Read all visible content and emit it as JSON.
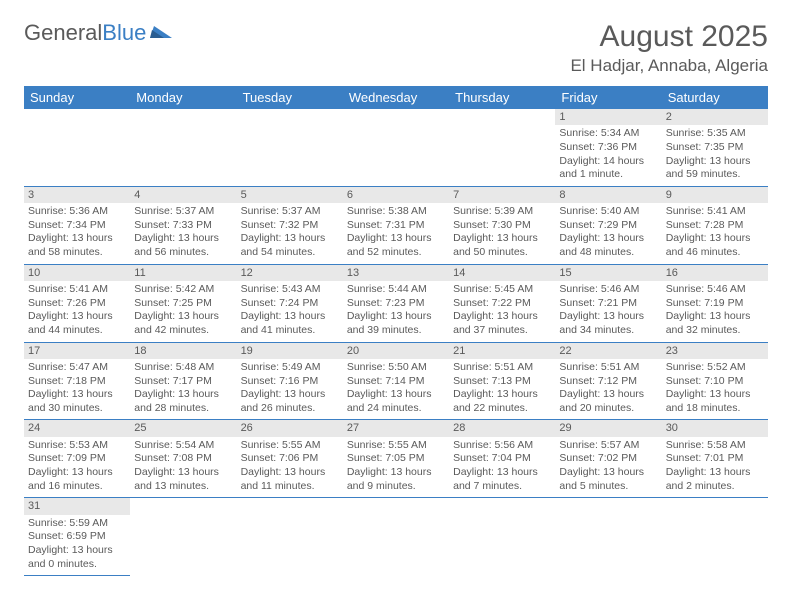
{
  "logo": {
    "text1": "General",
    "text2": "Blue"
  },
  "title": "August 2025",
  "location": "El Hadjar, Annaba, Algeria",
  "colors": {
    "header_bg": "#3b7fc4",
    "header_text": "#ffffff",
    "daynum_bg": "#e8e8e8",
    "border": "#3b7fc4",
    "text": "#5a5a5a"
  },
  "weekdays": [
    "Sunday",
    "Monday",
    "Tuesday",
    "Wednesday",
    "Thursday",
    "Friday",
    "Saturday"
  ],
  "weeks": [
    [
      null,
      null,
      null,
      null,
      null,
      {
        "n": "1",
        "sr": "5:34 AM",
        "ss": "7:36 PM",
        "dl": "14 hours and 1 minute."
      },
      {
        "n": "2",
        "sr": "5:35 AM",
        "ss": "7:35 PM",
        "dl": "13 hours and 59 minutes."
      }
    ],
    [
      {
        "n": "3",
        "sr": "5:36 AM",
        "ss": "7:34 PM",
        "dl": "13 hours and 58 minutes."
      },
      {
        "n": "4",
        "sr": "5:37 AM",
        "ss": "7:33 PM",
        "dl": "13 hours and 56 minutes."
      },
      {
        "n": "5",
        "sr": "5:37 AM",
        "ss": "7:32 PM",
        "dl": "13 hours and 54 minutes."
      },
      {
        "n": "6",
        "sr": "5:38 AM",
        "ss": "7:31 PM",
        "dl": "13 hours and 52 minutes."
      },
      {
        "n": "7",
        "sr": "5:39 AM",
        "ss": "7:30 PM",
        "dl": "13 hours and 50 minutes."
      },
      {
        "n": "8",
        "sr": "5:40 AM",
        "ss": "7:29 PM",
        "dl": "13 hours and 48 minutes."
      },
      {
        "n": "9",
        "sr": "5:41 AM",
        "ss": "7:28 PM",
        "dl": "13 hours and 46 minutes."
      }
    ],
    [
      {
        "n": "10",
        "sr": "5:41 AM",
        "ss": "7:26 PM",
        "dl": "13 hours and 44 minutes."
      },
      {
        "n": "11",
        "sr": "5:42 AM",
        "ss": "7:25 PM",
        "dl": "13 hours and 42 minutes."
      },
      {
        "n": "12",
        "sr": "5:43 AM",
        "ss": "7:24 PM",
        "dl": "13 hours and 41 minutes."
      },
      {
        "n": "13",
        "sr": "5:44 AM",
        "ss": "7:23 PM",
        "dl": "13 hours and 39 minutes."
      },
      {
        "n": "14",
        "sr": "5:45 AM",
        "ss": "7:22 PM",
        "dl": "13 hours and 37 minutes."
      },
      {
        "n": "15",
        "sr": "5:46 AM",
        "ss": "7:21 PM",
        "dl": "13 hours and 34 minutes."
      },
      {
        "n": "16",
        "sr": "5:46 AM",
        "ss": "7:19 PM",
        "dl": "13 hours and 32 minutes."
      }
    ],
    [
      {
        "n": "17",
        "sr": "5:47 AM",
        "ss": "7:18 PM",
        "dl": "13 hours and 30 minutes."
      },
      {
        "n": "18",
        "sr": "5:48 AM",
        "ss": "7:17 PM",
        "dl": "13 hours and 28 minutes."
      },
      {
        "n": "19",
        "sr": "5:49 AM",
        "ss": "7:16 PM",
        "dl": "13 hours and 26 minutes."
      },
      {
        "n": "20",
        "sr": "5:50 AM",
        "ss": "7:14 PM",
        "dl": "13 hours and 24 minutes."
      },
      {
        "n": "21",
        "sr": "5:51 AM",
        "ss": "7:13 PM",
        "dl": "13 hours and 22 minutes."
      },
      {
        "n": "22",
        "sr": "5:51 AM",
        "ss": "7:12 PM",
        "dl": "13 hours and 20 minutes."
      },
      {
        "n": "23",
        "sr": "5:52 AM",
        "ss": "7:10 PM",
        "dl": "13 hours and 18 minutes."
      }
    ],
    [
      {
        "n": "24",
        "sr": "5:53 AM",
        "ss": "7:09 PM",
        "dl": "13 hours and 16 minutes."
      },
      {
        "n": "25",
        "sr": "5:54 AM",
        "ss": "7:08 PM",
        "dl": "13 hours and 13 minutes."
      },
      {
        "n": "26",
        "sr": "5:55 AM",
        "ss": "7:06 PM",
        "dl": "13 hours and 11 minutes."
      },
      {
        "n": "27",
        "sr": "5:55 AM",
        "ss": "7:05 PM",
        "dl": "13 hours and 9 minutes."
      },
      {
        "n": "28",
        "sr": "5:56 AM",
        "ss": "7:04 PM",
        "dl": "13 hours and 7 minutes."
      },
      {
        "n": "29",
        "sr": "5:57 AM",
        "ss": "7:02 PM",
        "dl": "13 hours and 5 minutes."
      },
      {
        "n": "30",
        "sr": "5:58 AM",
        "ss": "7:01 PM",
        "dl": "13 hours and 2 minutes."
      }
    ],
    [
      {
        "n": "31",
        "sr": "5:59 AM",
        "ss": "6:59 PM",
        "dl": "13 hours and 0 minutes."
      },
      null,
      null,
      null,
      null,
      null,
      null
    ]
  ],
  "labels": {
    "sunrise": "Sunrise: ",
    "sunset": "Sunset: ",
    "daylight": "Daylight: "
  }
}
